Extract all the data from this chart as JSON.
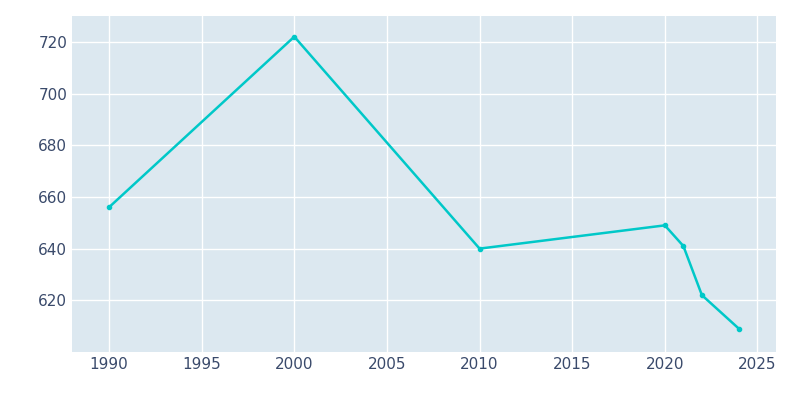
{
  "years": [
    1990,
    2000,
    2010,
    2020,
    2021,
    2022,
    2024
  ],
  "population": [
    656,
    722,
    640,
    649,
    641,
    622,
    609
  ],
  "line_color": "#00C8C8",
  "plot_bg_color": "#dce8f0",
  "fig_bg_color": "#ffffff",
  "xlim": [
    1988,
    2026
  ],
  "ylim": [
    600,
    730
  ],
  "yticks": [
    620,
    640,
    660,
    680,
    700,
    720
  ],
  "xticks": [
    1990,
    1995,
    2000,
    2005,
    2010,
    2015,
    2020,
    2025
  ],
  "grid_color": "#ffffff",
  "tick_color": "#3a4a6b",
  "line_width": 1.8,
  "tick_fontsize": 11
}
